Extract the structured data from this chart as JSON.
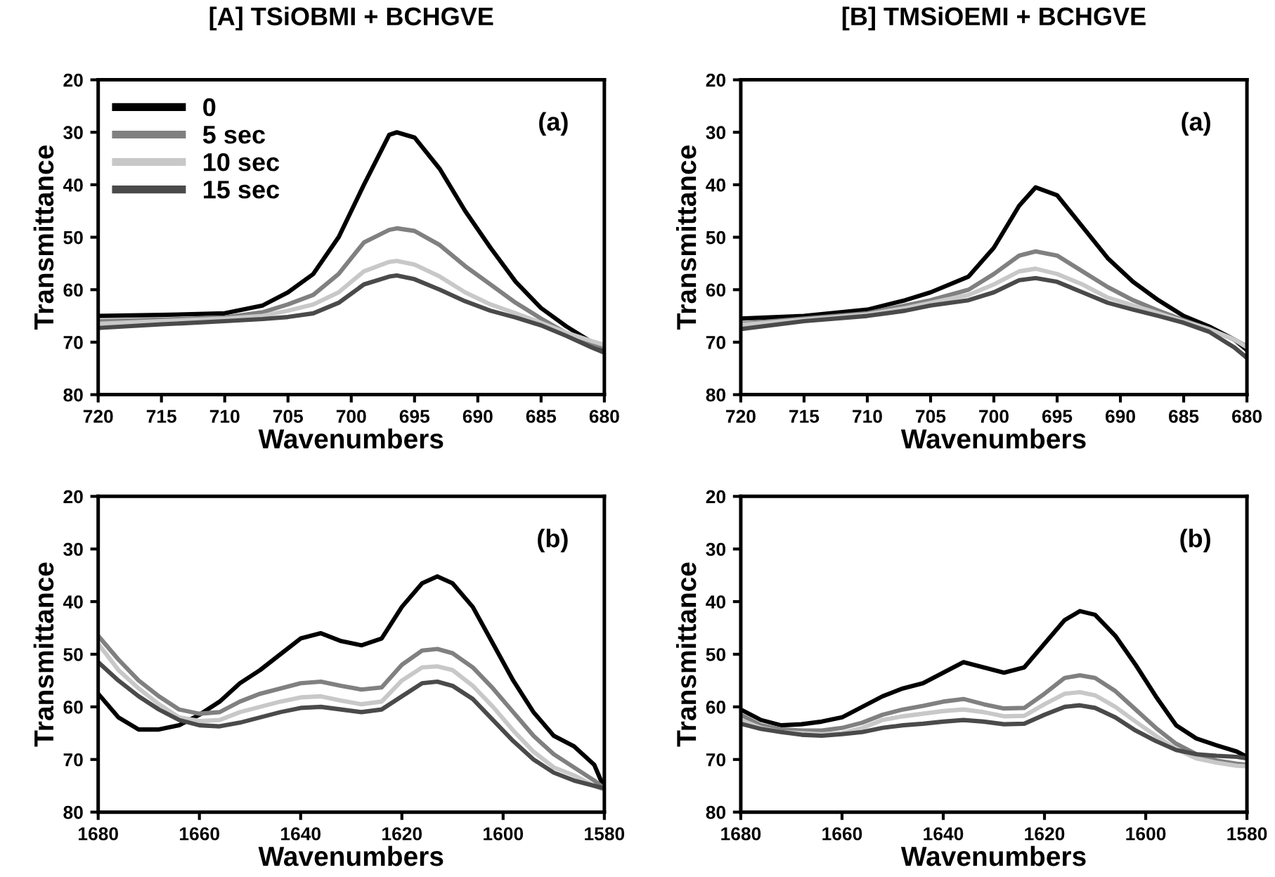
{
  "chart_data": [
    {
      "type": "line",
      "title": "[A] TSiOBMI + BCHGVE",
      "xlabel": "Wavenumbers",
      "ylabel": "Transmittance",
      "annotations": [
        "(a)"
      ],
      "legend": "top left",
      "x": [
        720,
        715,
        710,
        707,
        705,
        703,
        701,
        699,
        697,
        696.4,
        695,
        693,
        691,
        689,
        687,
        685,
        683,
        681,
        680
      ],
      "series": [
        {
          "name": "0",
          "color": "#000000",
          "values": [
            65,
            64.8,
            64.5,
            63,
            60.5,
            57,
            50,
            40,
            30.5,
            30,
            31,
            37,
            45,
            52,
            58.5,
            63.5,
            67,
            70,
            71.7
          ]
        },
        {
          "name": "5 sec",
          "color": "#808080",
          "values": [
            66,
            65.7,
            65.3,
            64.3,
            62.8,
            61,
            57,
            51,
            48.6,
            48.3,
            48.8,
            51.5,
            55.5,
            59,
            62.5,
            65.5,
            68.3,
            70.3,
            71
          ]
        },
        {
          "name": "10 sec",
          "color": "#c8c8c8",
          "values": [
            66.5,
            66,
            65.5,
            65,
            64,
            62.8,
            60.5,
            56.5,
            54.7,
            54.5,
            55.2,
            57.5,
            60.5,
            62.8,
            64.5,
            66.3,
            68.2,
            69.8,
            70.5
          ]
        },
        {
          "name": "15 sec",
          "color": "#4a4a4a",
          "values": [
            67.3,
            66.6,
            66,
            65.6,
            65.2,
            64.5,
            62.5,
            59,
            57.5,
            57.3,
            58,
            60,
            62.2,
            64,
            65.3,
            66.8,
            68.8,
            71,
            72
          ]
        }
      ],
      "xlim": [
        720,
        680
      ],
      "xticks": [
        720,
        715,
        710,
        705,
        700,
        695,
        690,
        685,
        680
      ],
      "ylim": [
        80,
        20
      ],
      "yticks": [
        20,
        30,
        40,
        50,
        60,
        70,
        80
      ]
    },
    {
      "type": "line",
      "title": "[B] TMSiOEMI + BCHGVE",
      "xlabel": "Wavenumbers",
      "ylabel": "Transmittance",
      "annotations": [
        "(a)"
      ],
      "x": [
        720,
        715,
        710,
        707,
        705,
        702,
        700,
        698,
        696.7,
        695,
        693,
        691,
        689,
        687,
        685,
        683,
        681,
        680
      ],
      "series": [
        {
          "color": "#000000",
          "values": [
            65.5,
            65,
            63.8,
            62,
            60.5,
            57.5,
            52,
            44,
            40.5,
            42,
            48,
            54,
            58.5,
            62,
            65,
            67,
            69.5,
            71.5
          ]
        },
        {
          "color": "#808080",
          "values": [
            66.5,
            65.5,
            64.5,
            63,
            62,
            60,
            57,
            53.5,
            52.7,
            53.5,
            56.5,
            59.5,
            62,
            64,
            65.8,
            67.5,
            69.5,
            70.8
          ]
        },
        {
          "color": "#c8c8c8",
          "values": [
            66.7,
            65.7,
            64.7,
            63.5,
            62.5,
            61,
            59,
            56.5,
            56,
            57,
            59,
            61.5,
            63,
            64.5,
            66,
            67.5,
            69.5,
            71
          ]
        },
        {
          "color": "#4a4a4a",
          "values": [
            67.5,
            66,
            65,
            64,
            63,
            62,
            60.5,
            58.2,
            57.8,
            58.5,
            60.5,
            62.5,
            63.8,
            65,
            66.3,
            68,
            71,
            73
          ]
        }
      ],
      "xlim": [
        720,
        680
      ],
      "xticks": [
        720,
        715,
        710,
        705,
        700,
        695,
        690,
        685,
        680
      ],
      "ylim": [
        80,
        20
      ],
      "yticks": [
        20,
        30,
        40,
        50,
        60,
        70,
        80
      ]
    },
    {
      "type": "line",
      "xlabel": "Wavenumbers",
      "ylabel": "Transmittance",
      "annotations": [
        "(b)"
      ],
      "x": [
        1680,
        1676,
        1672,
        1668,
        1664,
        1660,
        1656,
        1652,
        1648,
        1644,
        1640,
        1636,
        1632,
        1628,
        1624,
        1620,
        1616,
        1613,
        1610,
        1606,
        1602,
        1598,
        1594,
        1590,
        1586,
        1582,
        1580
      ],
      "series": [
        {
          "color": "#000000",
          "values": [
            57.5,
            62,
            64.3,
            64.3,
            63.5,
            61.5,
            59,
            55.5,
            53,
            50,
            47,
            46,
            47.5,
            48.3,
            47,
            41,
            36.5,
            35.2,
            36.5,
            41,
            48,
            55,
            61,
            65.5,
            67.5,
            71,
            75.5
          ]
        },
        {
          "color": "#808080",
          "values": [
            46.5,
            51,
            55,
            58,
            60.5,
            61.3,
            61,
            59,
            57.5,
            56.5,
            55.5,
            55.2,
            56,
            56.7,
            56.3,
            52,
            49.3,
            49,
            49.8,
            52.5,
            56.5,
            61,
            65.5,
            69,
            71.5,
            74,
            75.5
          ]
        },
        {
          "color": "#c8c8c8",
          "values": [
            48,
            53,
            56.5,
            59.5,
            62,
            62.7,
            62.5,
            61,
            60,
            59,
            58.2,
            58,
            58.8,
            59.5,
            59,
            55,
            52.5,
            52.3,
            53,
            56,
            60,
            64.5,
            68.5,
            71.5,
            73,
            75,
            75.8
          ]
        },
        {
          "color": "#4a4a4a",
          "values": [
            51.5,
            55,
            58,
            60.5,
            62.5,
            63.5,
            63.7,
            63,
            62,
            61,
            60.2,
            60,
            60.5,
            61,
            60.5,
            58,
            55.5,
            55.2,
            56,
            58.5,
            62.5,
            66.5,
            70,
            72.5,
            74,
            75,
            75.5
          ]
        }
      ],
      "xlim": [
        1680,
        1580
      ],
      "xticks": [
        1680,
        1660,
        1640,
        1620,
        1600,
        1580
      ],
      "ylim": [
        80,
        20
      ],
      "yticks": [
        20,
        30,
        40,
        50,
        60,
        70,
        80
      ]
    },
    {
      "type": "line",
      "xlabel": "Wavenumbers",
      "ylabel": "Transmittance",
      "annotations": [
        "(b)"
      ],
      "x": [
        1680,
        1676,
        1672,
        1668,
        1664,
        1660,
        1656,
        1652,
        1648,
        1644,
        1640,
        1636,
        1632,
        1628,
        1624,
        1620,
        1616,
        1613,
        1610,
        1606,
        1602,
        1598,
        1594,
        1590,
        1586,
        1582,
        1580
      ],
      "series": [
        {
          "color": "#000000",
          "values": [
            60.5,
            62.5,
            63.5,
            63.3,
            62.8,
            62,
            60,
            58,
            56.5,
            55.5,
            53.5,
            51.5,
            52.5,
            53.5,
            52.5,
            48,
            43.5,
            41.8,
            42.5,
            46.5,
            52,
            58,
            63.5,
            66,
            67.3,
            68.5,
            69.5
          ]
        },
        {
          "color": "#808080",
          "values": [
            61.5,
            63.5,
            64.3,
            64.5,
            64.5,
            64,
            63,
            61.5,
            60.5,
            59.8,
            59,
            58.5,
            59.5,
            60.3,
            60.2,
            57.5,
            54.5,
            54,
            54.5,
            57,
            60.5,
            64,
            67,
            69,
            70.2,
            70.8,
            71
          ]
        },
        {
          "color": "#c8c8c8",
          "values": [
            62.5,
            64,
            64.8,
            65,
            65.2,
            65,
            64,
            62.5,
            61.8,
            61.3,
            60.8,
            60.5,
            61,
            61.8,
            61.7,
            59.5,
            57.5,
            57.2,
            57.8,
            60,
            62.8,
            65.5,
            68,
            69.8,
            70.6,
            71.2,
            71.3
          ]
        },
        {
          "color": "#4a4a4a",
          "values": [
            63.2,
            64.2,
            64.8,
            65.3,
            65.5,
            65.2,
            64.8,
            64,
            63.5,
            63.2,
            62.8,
            62.5,
            62.8,
            63.3,
            63.2,
            61.5,
            60,
            59.7,
            60.2,
            62,
            64.5,
            66.5,
            68.2,
            69,
            69.3,
            69.5,
            69.8
          ]
        }
      ],
      "xlim": [
        1680,
        1580
      ],
      "xticks": [
        1680,
        1660,
        1640,
        1620,
        1600,
        1580
      ],
      "ylim": [
        80,
        20
      ],
      "yticks": [
        20,
        30,
        40,
        50,
        60,
        70,
        80
      ]
    }
  ]
}
